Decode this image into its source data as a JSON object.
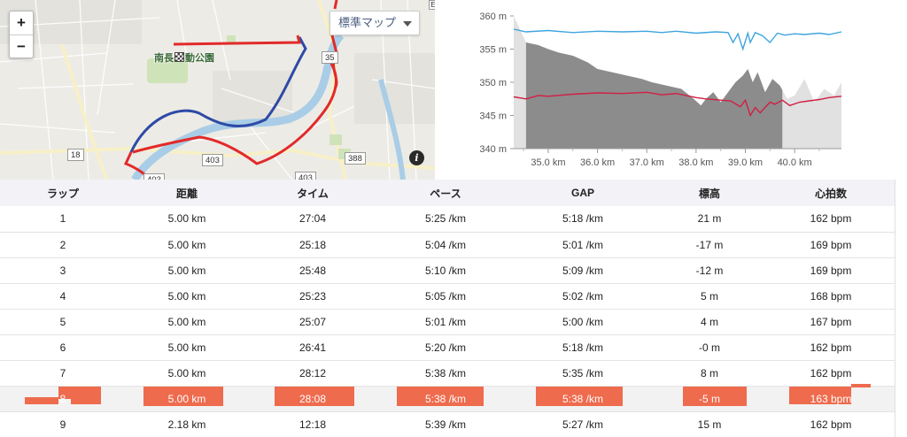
{
  "map": {
    "zoom_in": "+",
    "zoom_out": "−",
    "map_type": "標準マップ",
    "info": "i",
    "park_name": "南長野運動公園",
    "park_name_prefix": "南長",
    "park_name_suffix": "動公園",
    "road_tags": [
      "35",
      "18",
      "403",
      "403",
      "388",
      "403"
    ],
    "corner_tag": "E"
  },
  "chart_data": {
    "type": "area",
    "xlabel": "",
    "ylabel": "",
    "x_ticks": [
      "35.0 km",
      "36.0 km",
      "37.0 km",
      "38.0 km",
      "39.0 km",
      "40.0 km"
    ],
    "y_ticks": [
      "340 m",
      "345 m",
      "350 m",
      "355 m",
      "360 m"
    ],
    "x_range": [
      34.3,
      40.95
    ],
    "ylim": [
      340,
      360
    ],
    "highlight_range": [
      34.55,
      39.75
    ],
    "colors": {
      "elevation_fill": "#b0b0b0",
      "highlight_fill": "#8c8c8c",
      "background_fill": "#e1e1e1",
      "upper_line": "#3ea4de",
      "lower_line": "#d11f44"
    },
    "series": [
      {
        "x": [
          34.3,
          34.55,
          34.8,
          35.0,
          35.2,
          35.5,
          35.8,
          36.0,
          36.3,
          36.6,
          36.9,
          37.1,
          37.4,
          37.7,
          37.95,
          38.1,
          38.2,
          38.35,
          38.5,
          38.65,
          38.8,
          38.95,
          39.05,
          39.15,
          39.25,
          39.4,
          39.55,
          39.7,
          39.85,
          40.0,
          40.2,
          40.4,
          40.6,
          40.8,
          40.95
        ],
        "values": [
          360,
          356,
          355.6,
          355,
          354.5,
          354,
          353,
          352,
          351.5,
          351,
          350.5,
          350,
          349.5,
          349,
          347.5,
          346.5,
          347.5,
          348.5,
          347,
          348.5,
          350,
          351,
          352,
          350,
          351.5,
          348.5,
          350.5,
          349.5,
          347.5,
          348,
          350.5,
          347,
          349,
          348,
          350
        ]
      },
      {
        "x": [
          34.3,
          34.55,
          35.0,
          35.5,
          36.0,
          36.5,
          37.0,
          37.3,
          37.6,
          38.0,
          38.4,
          38.65,
          38.75,
          38.85,
          38.95,
          39.05,
          39.1,
          39.2,
          39.35,
          39.5,
          39.65,
          39.8,
          40.0,
          40.2,
          40.5,
          40.7,
          40.95
        ],
        "values": [
          358,
          357.6,
          357.8,
          357.5,
          357.7,
          357.6,
          357.7,
          357.5,
          357.7,
          357.4,
          357.6,
          357.5,
          356,
          357.3,
          355,
          357.4,
          356,
          357.5,
          357,
          356,
          357.4,
          357.1,
          357.3,
          357.2,
          357.4,
          357.2,
          357.6
        ]
      },
      {
        "x": [
          34.3,
          34.55,
          34.8,
          35.0,
          35.5,
          36.0,
          36.5,
          37.0,
          37.3,
          37.6,
          38.0,
          38.2,
          38.5,
          38.7,
          38.9,
          39.0,
          39.1,
          39.2,
          39.3,
          39.5,
          39.6,
          39.75,
          39.9,
          40.1,
          40.3,
          40.5,
          40.7,
          40.95
        ],
        "values": [
          347.8,
          347.5,
          348,
          347.9,
          348.2,
          348.4,
          348.3,
          348.5,
          348.1,
          348.3,
          347.7,
          347.5,
          347.3,
          347.2,
          346.3,
          347.3,
          345,
          346.2,
          345.4,
          347,
          346.7,
          347.3,
          346.5,
          347,
          347.2,
          347.4,
          347.7,
          347.9
        ]
      }
    ]
  },
  "table": {
    "headers": [
      "ラップ",
      "距離",
      "タイム",
      "ペース",
      "GAP",
      "標高",
      "心拍数"
    ],
    "rows": [
      [
        "1",
        "5.00 km",
        "27:04",
        "5:25 /km",
        "5:18 /km",
        "21 m",
        "162 bpm"
      ],
      [
        "2",
        "5.00 km",
        "25:18",
        "5:04 /km",
        "5:01 /km",
        "-17 m",
        "169 bpm"
      ],
      [
        "3",
        "5.00 km",
        "25:48",
        "5:10 /km",
        "5:09 /km",
        "-12 m",
        "169 bpm"
      ],
      [
        "4",
        "5.00 km",
        "25:23",
        "5:05 /km",
        "5:02 /km",
        "5 m",
        "168 bpm"
      ],
      [
        "5",
        "5.00 km",
        "25:07",
        "5:01 /km",
        "5:00 /km",
        "4 m",
        "167 bpm"
      ],
      [
        "6",
        "5.00 km",
        "26:41",
        "5:20 /km",
        "5:18 /km",
        "-0 m",
        "162 bpm"
      ],
      [
        "7",
        "5.00 km",
        "28:12",
        "5:38 /km",
        "5:35 /km",
        "8 m",
        "162 bpm"
      ],
      [
        "8",
        "5.00 km",
        "28:08",
        "5:38 /km",
        "5:38 /km",
        "-5 m",
        "163 bpm"
      ],
      [
        "9",
        "2.18 km",
        "12:18",
        "5:39 /km",
        "5:27 /km",
        "15 m",
        "162 bpm"
      ]
    ],
    "highlight_row_index": 7,
    "highlight_color": "#ee6b4d"
  }
}
